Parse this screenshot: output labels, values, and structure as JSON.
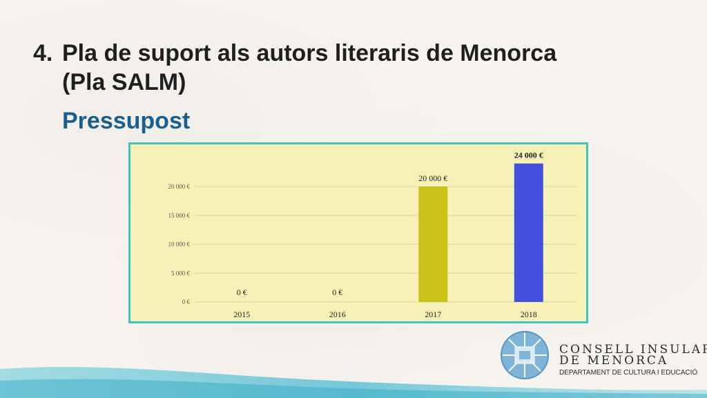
{
  "slide": {
    "title_number": "4.",
    "title_line1": "Pla de suport als autors literaris de Menorca",
    "title_line2": "(Pla SALM)",
    "subtitle": "Pressupost"
  },
  "logo": {
    "line1": "CONSELL INSULAR",
    "line2": "DE MENORCA",
    "department": "DEPARTAMENT DE CULTURA I EDUCACIÓ"
  },
  "colors": {
    "title": "#1f1f1f",
    "subtitle": "#1a5e8f",
    "chart_bg": "#f7f1b7",
    "chart_border": "#3fc3c3"
  },
  "chart_data": {
    "type": "bar",
    "categories": [
      "2015",
      "2016",
      "2017",
      "2018"
    ],
    "values": [
      0,
      0,
      20000,
      24000
    ],
    "data_labels": [
      "0 €",
      "0 €",
      "20 000 €",
      "24 000 €"
    ],
    "bar_colors": [
      "#c9c218",
      "#c9c218",
      "#c9c218",
      "#4350dc"
    ],
    "ylim": [
      0,
      20000
    ],
    "yticks": [
      0,
      5000,
      10000,
      15000,
      20000
    ],
    "ytick_labels": [
      "0 €",
      "5 000 €",
      "10 000 €",
      "15 000 €",
      "20 000 €"
    ],
    "grid": true,
    "title": "",
    "xlabel": "",
    "ylabel": ""
  }
}
